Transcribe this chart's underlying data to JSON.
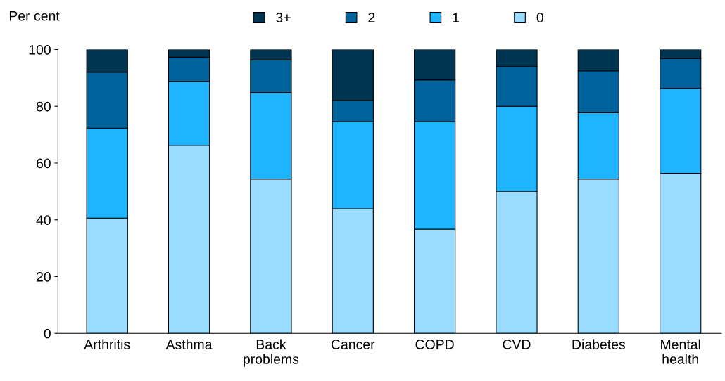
{
  "chart_data": {
    "type": "bar",
    "stacked": true,
    "ylabel": "Per cent",
    "categories": [
      "Arthritis",
      "Asthma",
      "Back\nproblems",
      "Cancer",
      "COPD",
      "CVD",
      "Diabetes",
      "Mental\nhealth"
    ],
    "series": [
      {
        "name": "0",
        "color": "#99dcff",
        "values": [
          40.6,
          66.1,
          54.4,
          43.9,
          36.7,
          50.1,
          54.4,
          56.4
        ]
      },
      {
        "name": "1",
        "color": "#1fb4ff",
        "values": [
          31.7,
          22.7,
          30.4,
          30.7,
          37.9,
          29.9,
          23.4,
          29.9
        ]
      },
      {
        "name": "2",
        "color": "#00629a",
        "values": [
          19.7,
          8.5,
          11.5,
          7.4,
          14.7,
          14.0,
          14.7,
          10.5
        ]
      },
      {
        "name": "3+",
        "color": "#003552",
        "values": [
          8.0,
          2.7,
          3.7,
          18.0,
          10.7,
          6.0,
          7.5,
          3.2
        ]
      }
    ],
    "ylim": [
      0,
      100
    ],
    "yticks": [
      0,
      20,
      40,
      60,
      80,
      100
    ],
    "grid": false,
    "legend": "top"
  }
}
